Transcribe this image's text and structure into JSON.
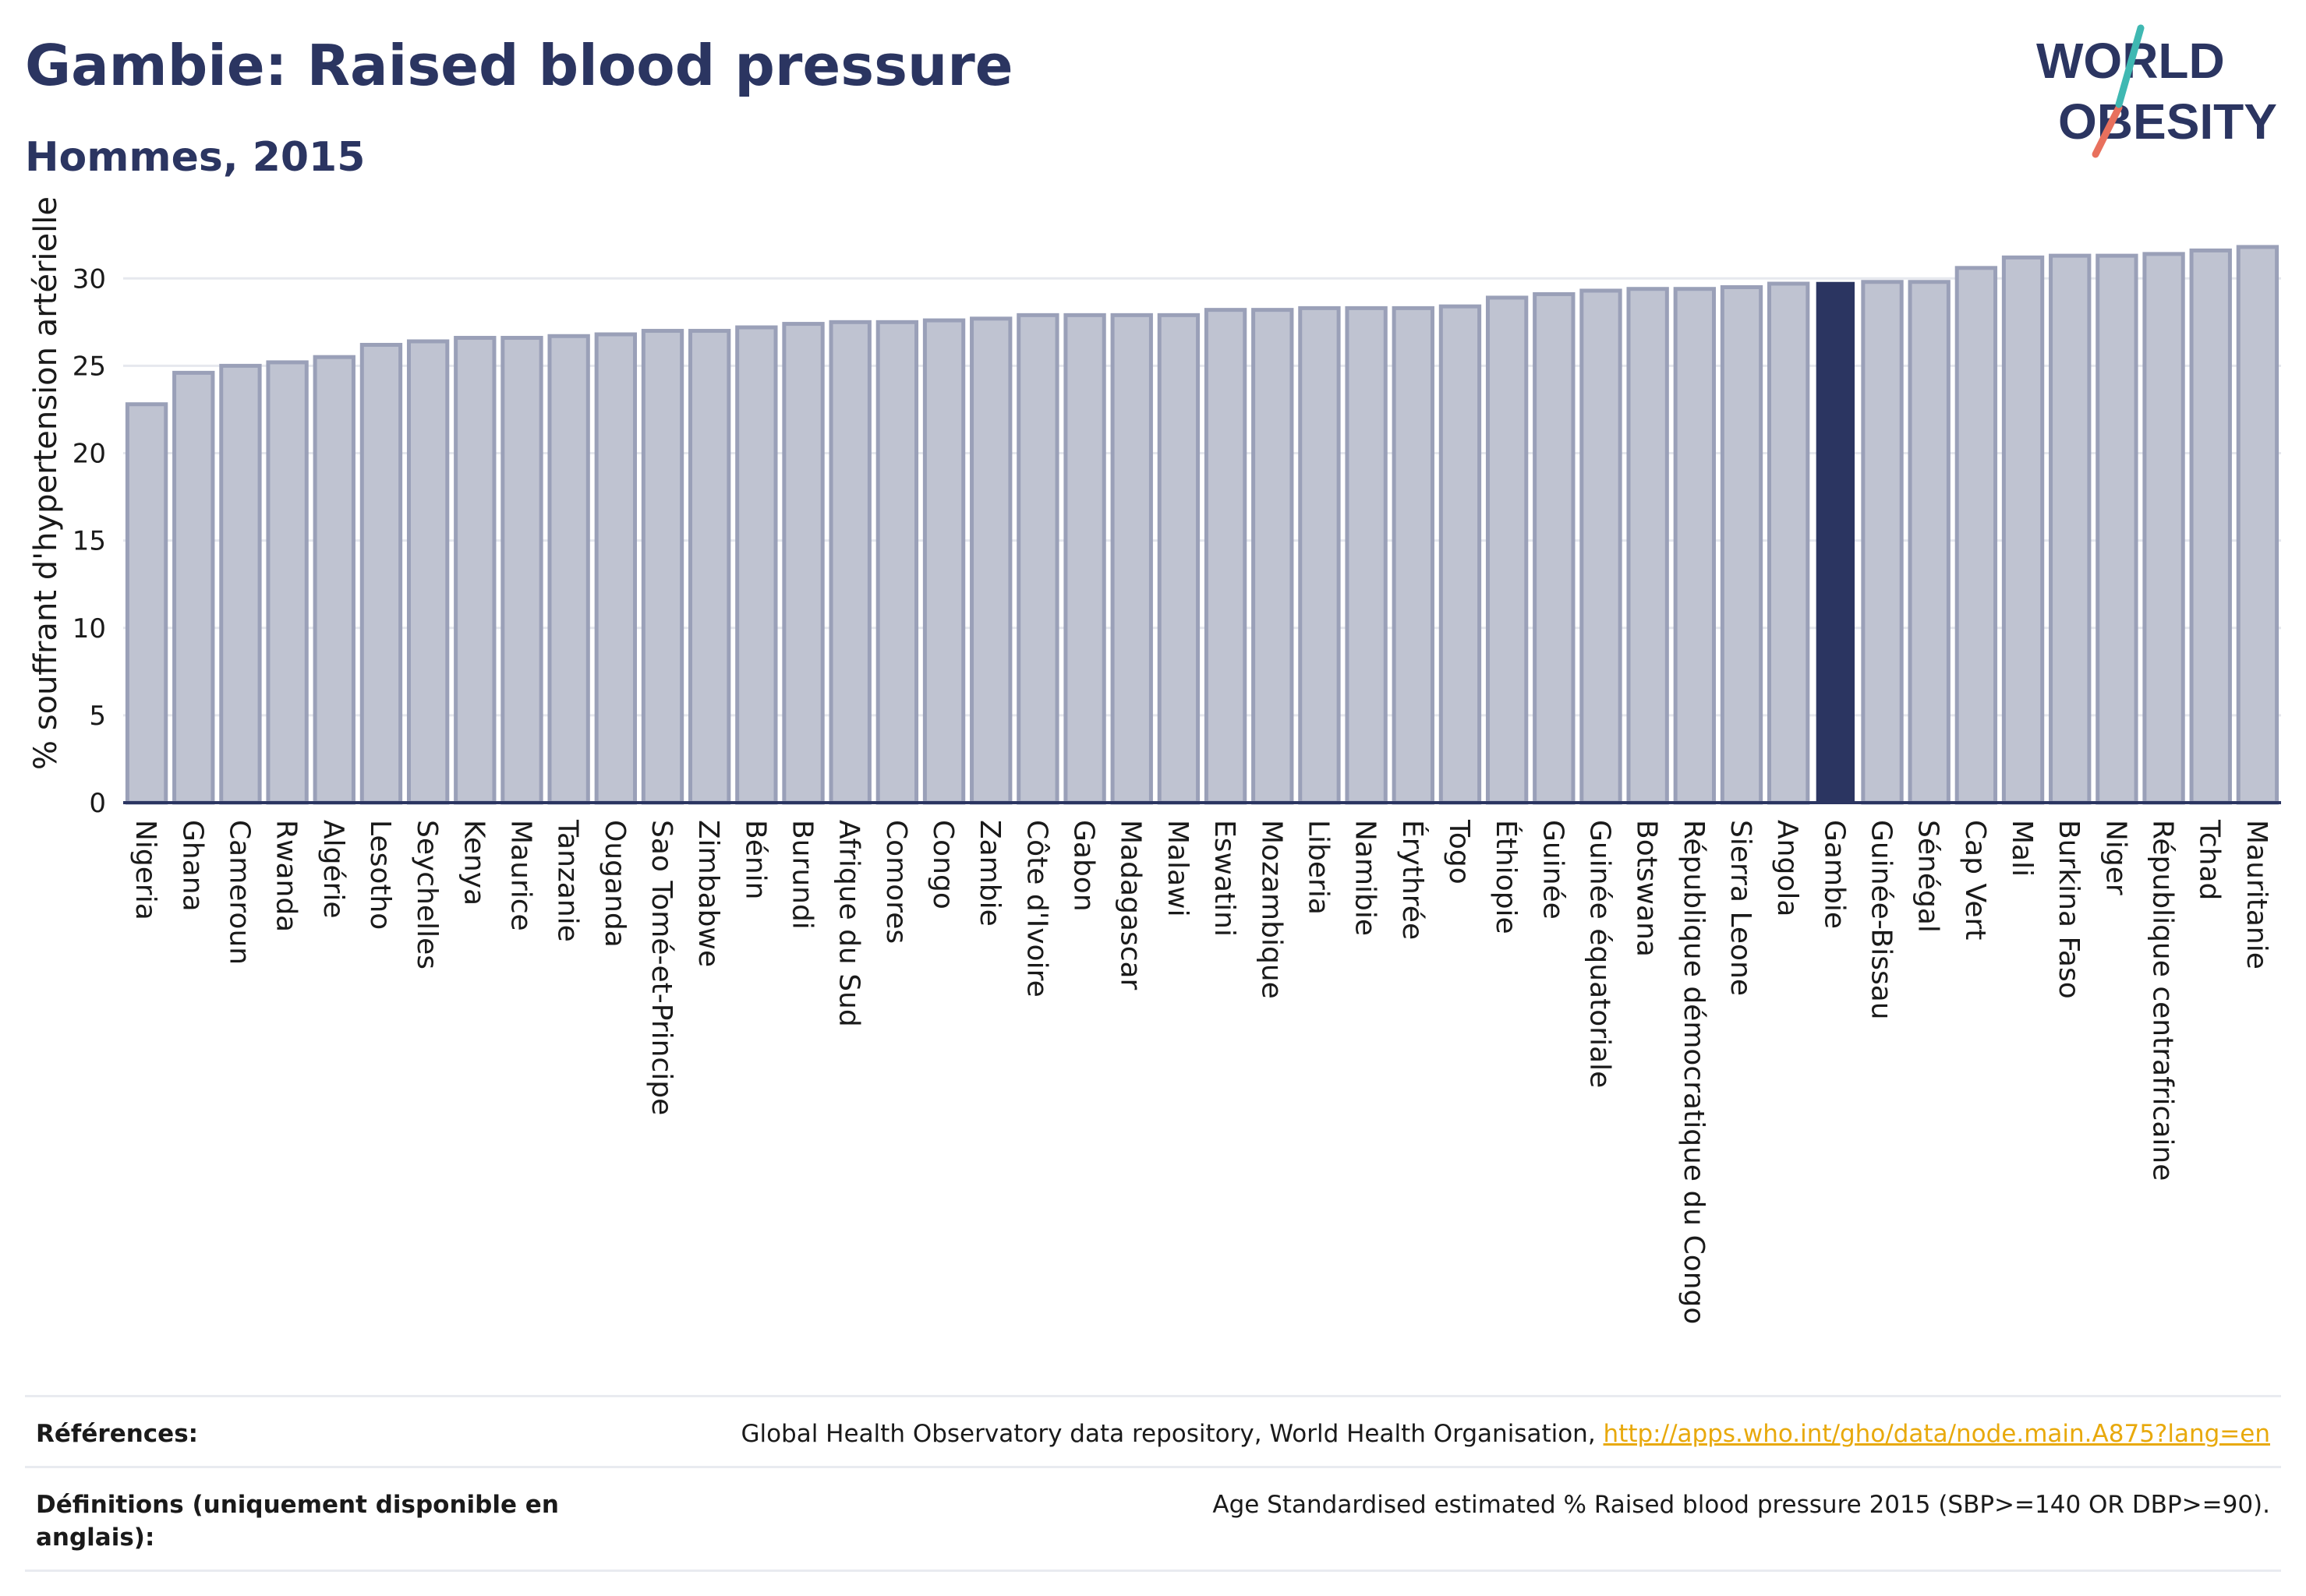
{
  "header": {
    "title": "Gambie: Raised blood pressure",
    "subtitle": "Hommes, 2015"
  },
  "logo": {
    "line1": "WORLD",
    "line2": "OBESITY"
  },
  "colors": {
    "bar": "#bfc3d1",
    "bar_border": "#9aa0b8",
    "highlight": "#2b3561",
    "title": "#2b3561",
    "link": "#e8a90c"
  },
  "chart_data": {
    "type": "bar",
    "ylabel": "% souffrant d'hypertension artérielle",
    "ylim": [
      0,
      33
    ],
    "yticks": [
      0,
      5,
      10,
      15,
      20,
      25,
      30
    ],
    "grid": true,
    "highlight": "Gambie",
    "categories": [
      "Nigeria",
      "Ghana",
      "Cameroun",
      "Rwanda",
      "Algérie",
      "Lesotho",
      "Seychelles",
      "Kenya",
      "Maurice",
      "Tanzanie",
      "Ouganda",
      "Sao Tomé-et-Principe",
      "Zimbabwe",
      "Bénin",
      "Burundi",
      "Afrique du Sud",
      "Comores",
      "Congo",
      "Zambie",
      "Côte d'Ivoire",
      "Gabon",
      "Madagascar",
      "Malawi",
      "Eswatini",
      "Mozambique",
      "Liberia",
      "Namibie",
      "Érythrée",
      "Togo",
      "Éthiopie",
      "Guinée",
      "Guinée équatoriale",
      "Botswana",
      "République démocratique du Congo",
      "Sierra Leone",
      "Angola",
      "Gambie",
      "Guinée-Bissau",
      "Sénégal",
      "Cap Vert",
      "Mali",
      "Burkina Faso",
      "Niger",
      "République centrafricaine",
      "Tchad",
      "Mauritanie"
    ],
    "values": [
      22.8,
      24.6,
      25.0,
      25.2,
      25.5,
      26.2,
      26.4,
      26.6,
      26.6,
      26.7,
      26.8,
      27.0,
      27.0,
      27.2,
      27.4,
      27.5,
      27.5,
      27.6,
      27.7,
      27.9,
      27.9,
      27.9,
      27.9,
      28.2,
      28.2,
      28.3,
      28.3,
      28.3,
      28.4,
      28.9,
      29.1,
      29.3,
      29.4,
      29.4,
      29.5,
      29.7,
      29.8,
      29.8,
      29.8,
      30.6,
      31.2,
      31.3,
      31.3,
      31.4,
      31.6,
      31.8
    ]
  },
  "footer": {
    "references_label": "Références:",
    "references_text": "Global Health Observatory data repository, World Health Organisation, ",
    "references_link": "http://apps.who.int/gho/data/node.main.A875?lang=en",
    "definitions_label": "Définitions (uniquement disponible en anglais):",
    "definitions_text": "Age Standardised estimated % Raised blood pressure 2015 (SBP>=140 OR DBP>=90)."
  }
}
